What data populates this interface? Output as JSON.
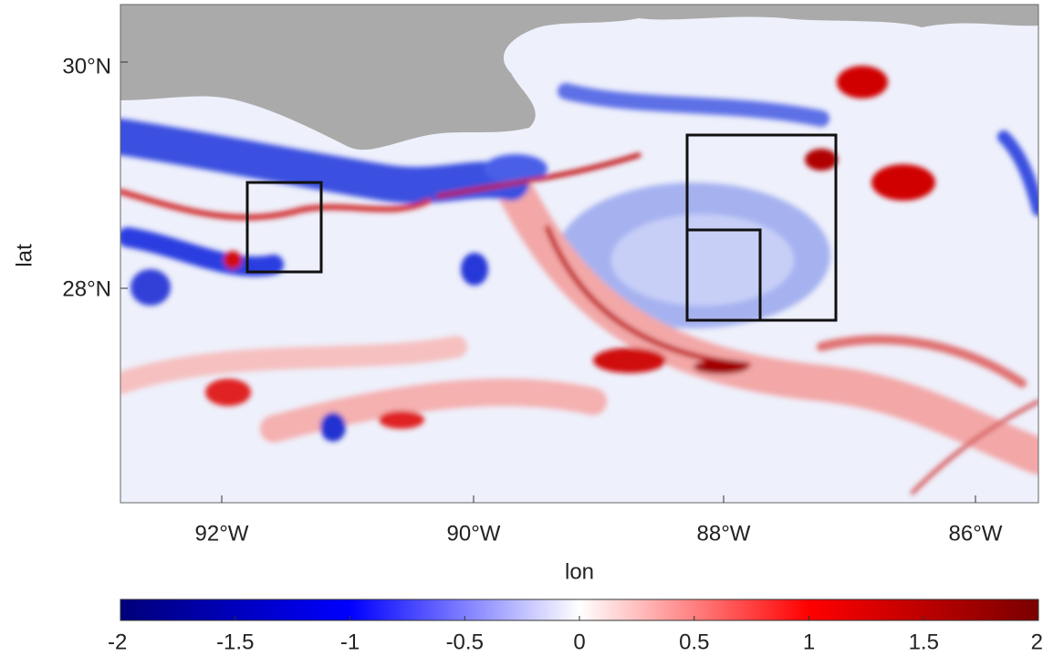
{
  "map": {
    "y_axis": {
      "label": "lat",
      "ticks": [
        "30°N",
        "28°N"
      ]
    },
    "x_axis": {
      "label": "lon",
      "ticks": [
        "92°W",
        "90°W",
        "88°W",
        "86°W"
      ]
    },
    "colorbar": {
      "lim": [
        -2,
        2
      ],
      "ticks": [
        -2,
        -1.5,
        -1,
        -0.5,
        0,
        0.5,
        1,
        1.5,
        2
      ]
    }
  }
}
